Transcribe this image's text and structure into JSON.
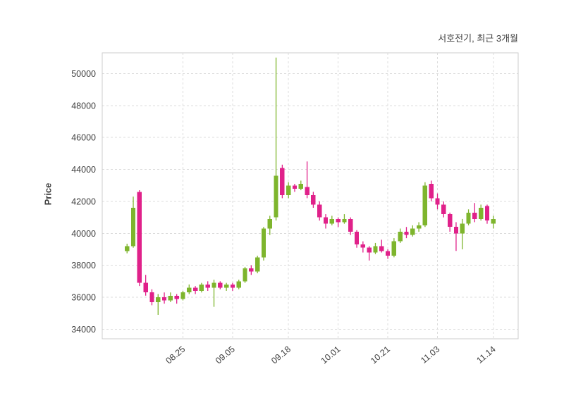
{
  "header": {
    "title": "서호전기, 최근 3개월"
  },
  "chart_data": {
    "type": "candlestick",
    "title": "서호전기, 최근 3개월",
    "xlabel": "",
    "ylabel": "Price",
    "ylim": [
      33400,
      51300
    ],
    "y_ticks": [
      34000,
      36000,
      38000,
      40000,
      42000,
      44000,
      46000,
      48000,
      50000
    ],
    "x_tick_labels": [
      "08.25",
      "09.05",
      "09.18",
      "10.01",
      "10.21",
      "11.03",
      "11.14"
    ],
    "x_tick_indices": [
      9,
      17,
      26,
      34,
      42,
      50,
      59
    ],
    "grid": "dashed",
    "legend": "none",
    "colors": {
      "up": "#7eb52d",
      "down": "#e0218a",
      "grid": "#dcdcdc",
      "border": "#cccccc",
      "text": "#3f3f3f",
      "background": "#ffffff"
    },
    "candles_ohlc_order": [
      "open",
      "high",
      "low",
      "close"
    ],
    "candles": [
      [
        38900,
        39350,
        38750,
        39200
      ],
      [
        39200,
        42300,
        39100,
        41600
      ],
      [
        42600,
        42700,
        36700,
        36900
      ],
      [
        36900,
        37400,
        36100,
        36300
      ],
      [
        36300,
        36500,
        35500,
        35700
      ],
      [
        35700,
        36200,
        34900,
        36000
      ],
      [
        36000,
        36300,
        35600,
        35800
      ],
      [
        35800,
        36300,
        35700,
        36100
      ],
      [
        36100,
        36200,
        35600,
        35900
      ],
      [
        35900,
        36400,
        35800,
        36300
      ],
      [
        36300,
        36800,
        36200,
        36600
      ],
      [
        36600,
        36700,
        36200,
        36400
      ],
      [
        36400,
        36900,
        36300,
        36800
      ],
      [
        36800,
        37000,
        36400,
        36600
      ],
      [
        36600,
        37100,
        35400,
        36900
      ],
      [
        36900,
        37000,
        36500,
        36600
      ],
      [
        36600,
        36900,
        36400,
        36800
      ],
      [
        36800,
        36900,
        36400,
        36600
      ],
      [
        36600,
        37100,
        36500,
        37000
      ],
      [
        37000,
        37900,
        36900,
        37800
      ],
      [
        37800,
        38000,
        37400,
        37600
      ],
      [
        37600,
        38600,
        37500,
        38500
      ],
      [
        38500,
        40400,
        38300,
        40300
      ],
      [
        40300,
        41100,
        39900,
        40900
      ],
      [
        41000,
        51000,
        40800,
        43600
      ],
      [
        44100,
        44300,
        42200,
        42400
      ],
      [
        42400,
        43200,
        42200,
        43000
      ],
      [
        43000,
        43100,
        42600,
        42800
      ],
      [
        42800,
        43300,
        42700,
        43100
      ],
      [
        42900,
        44500,
        42200,
        42400
      ],
      [
        42400,
        42600,
        41600,
        41800
      ],
      [
        41800,
        42000,
        40800,
        41000
      ],
      [
        41000,
        41200,
        40300,
        40600
      ],
      [
        40600,
        41100,
        40500,
        40900
      ],
      [
        40900,
        41000,
        40400,
        40700
      ],
      [
        40700,
        41200,
        40600,
        40900
      ],
      [
        40900,
        41000,
        39900,
        40100
      ],
      [
        40100,
        40200,
        39100,
        39300
      ],
      [
        39300,
        39500,
        38800,
        39100
      ],
      [
        39100,
        39200,
        38300,
        38800
      ],
      [
        38800,
        39400,
        38700,
        39200
      ],
      [
        39200,
        39600,
        38800,
        38900
      ],
      [
        38900,
        39000,
        38400,
        38600
      ],
      [
        38600,
        39700,
        38500,
        39500
      ],
      [
        39500,
        40300,
        39400,
        40100
      ],
      [
        40100,
        40400,
        39700,
        39900
      ],
      [
        39900,
        40500,
        39800,
        40300
      ],
      [
        40300,
        40700,
        40100,
        40500
      ],
      [
        40500,
        43200,
        40400,
        43000
      ],
      [
        43100,
        43300,
        42000,
        42200
      ],
      [
        42200,
        42500,
        41500,
        41800
      ],
      [
        41800,
        42000,
        41000,
        41200
      ],
      [
        41200,
        41300,
        40100,
        40400
      ],
      [
        40400,
        40700,
        38900,
        40000
      ],
      [
        40000,
        40900,
        39000,
        40600
      ],
      [
        40600,
        41500,
        40500,
        41300
      ],
      [
        41300,
        41900,
        40700,
        40900
      ],
      [
        40900,
        41800,
        40800,
        41600
      ],
      [
        41700,
        41800,
        40600,
        40800
      ],
      [
        40600,
        41100,
        40300,
        40900
      ]
    ]
  }
}
